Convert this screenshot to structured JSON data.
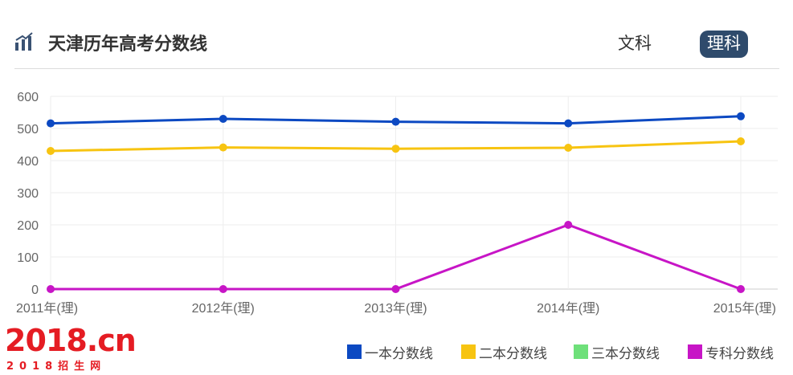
{
  "header": {
    "title": "天津历年高考分数线",
    "title_icon": "bar-chart-icon",
    "tabs": [
      {
        "label": "文科",
        "active": false
      },
      {
        "label": "理科",
        "active": true
      }
    ]
  },
  "chart_data": {
    "type": "line",
    "title": "",
    "xlabel": "",
    "ylabel": "",
    "categories": [
      "2011年(理)",
      "2012年(理)",
      "2013年(理)",
      "2014年(理)",
      "2015年(理)"
    ],
    "ylim": [
      0,
      600
    ],
    "yticks": [
      0,
      100,
      200,
      300,
      400,
      500,
      600
    ],
    "grid": true,
    "legend_position": "bottom-right",
    "series": [
      {
        "name": "一本分数线",
        "color": "#0c49c2",
        "values": [
          516,
          530,
          521,
          516,
          538
        ]
      },
      {
        "name": "二本分数线",
        "color": "#f7c411",
        "values": [
          430,
          441,
          437,
          440,
          460
        ]
      },
      {
        "name": "三本分数线",
        "color": "#6ee07a",
        "values": [
          0,
          0,
          0,
          0,
          0
        ]
      },
      {
        "name": "专科分数线",
        "color": "#c715c6",
        "values": [
          0,
          0,
          0,
          200,
          0
        ]
      }
    ]
  },
  "logo": {
    "main": "2018.cn",
    "sub": "2018招生网"
  }
}
